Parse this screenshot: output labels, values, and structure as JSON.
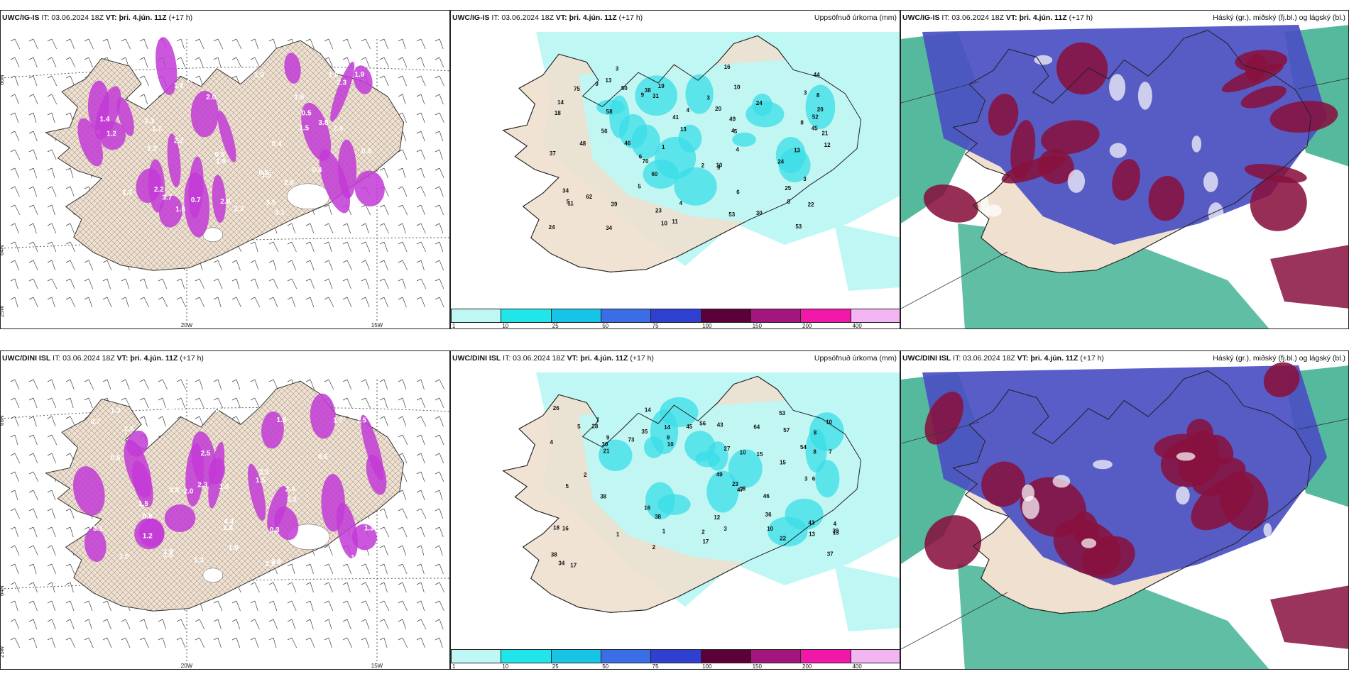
{
  "colors": {
    "land": "#efe0d0",
    "precip_light": "#bff7f4",
    "precip_mid": "#39dde8",
    "snow_pink": "#c23ad6",
    "cloud_high": "#88113f",
    "cloud_mid": "#4a4fc2",
    "cloud_low": "#2aa885"
  },
  "top_row": {
    "wind_panel": {
      "title_model": "UWC/IG-IS",
      "it_prefix": " IT: ",
      "it": "03.06.2024 18Z",
      "vt_prefix": " VT: ",
      "vt": "þri. 4.jún. 11Z",
      "lead": " (+17 h)",
      "axes": {
        "lat_top": "66N",
        "lat_bottom": "64N",
        "lon_left_edge": "25W",
        "lon_mid": "20W",
        "lon_right": "15W"
      },
      "values": [
        "3.1",
        "1.2",
        "2.2",
        "2.3",
        "3.8",
        "3.5",
        "0.9",
        "2.2",
        "1.9",
        "3.7",
        "1.3",
        "1.4",
        "0.9",
        "0.6",
        "1.5",
        "1.8",
        "1.2",
        "2.3",
        "0.4",
        "2.9",
        "2.6",
        "1.5",
        "1.6",
        "2.0",
        "0.4",
        "0.5",
        "1.2",
        "1.7",
        "2.3",
        "2.0",
        "2.6",
        "1.9",
        "1.8",
        "0.7",
        "1.3",
        "2.9",
        "1.0"
      ]
    },
    "precip_panel": {
      "title_model": "UWC/IG-IS",
      "it_prefix": " IT: ",
      "it": "03.06.2024 18Z",
      "vt_prefix": " VT: ",
      "vt": "þri. 4.jún. 11Z",
      "lead": " (+17 h)",
      "label": "Uppsöfnuð úrkoma (mm)",
      "values": [
        "12",
        "3",
        "4",
        "6",
        "5",
        "8",
        "3",
        "1",
        "11",
        "24",
        "62",
        "60",
        "70",
        "53",
        "75",
        "58",
        "45",
        "10",
        "21",
        "49",
        "56",
        "52",
        "38",
        "39",
        "41",
        "31",
        "18",
        "25",
        "34",
        "44",
        "11",
        "24",
        "46",
        "20",
        "30",
        "23",
        "16",
        "19",
        "9",
        "13",
        "14",
        "3",
        "10",
        "37",
        "5",
        "9",
        "4",
        "9",
        "34",
        "50",
        "48",
        "53",
        "13",
        "8",
        "20",
        "24",
        "4",
        "13",
        "10",
        "22",
        "2",
        "6",
        "8",
        "4",
        "3",
        "5"
      ],
      "colorbar": {
        "ticks": [
          "1",
          "10",
          "25",
          "50",
          "75",
          "100",
          "150",
          "200",
          "400"
        ],
        "colors": [
          "#bff7f4",
          "#20e6ea",
          "#16c4e6",
          "#3a6de6",
          "#2f3fcf",
          "#5b0039",
          "#a3167e",
          "#f117a8",
          "#f3b6f2"
        ]
      }
    },
    "cloud_panel": {
      "title_model": "UWC/IG-IS",
      "it_prefix": " IT: ",
      "it": "03.06.2024 18Z",
      "vt_prefix": " VT: ",
      "vt": "þri. 4.jún. 11Z",
      "lead": " (+17 h)",
      "label": "Háský (gr.), miðský (fj.bl.) og lágský (bl.)"
    }
  },
  "bottom_row": {
    "wind_panel": {
      "title_model": "UWC/DINI ISL",
      "it_prefix": " IT: ",
      "it": "03.06.2024 18Z",
      "vt_prefix": " VT: ",
      "vt": "þri. 4.jún. 11Z",
      "lead": " (+17 h)",
      "axes": {
        "lat_top": "66N",
        "lat_bottom": "64N",
        "lon_left_edge": "25W",
        "lon_mid": "20W",
        "lon_right": "15W"
      },
      "values": [
        "1.3",
        "2.2",
        "1.9",
        "1.4",
        "3.3",
        "2.6",
        "3.8",
        "1.1",
        "3.0",
        "2.5",
        "1.7",
        "1.9",
        "2.3",
        "1.8",
        "1.6",
        "1.5",
        "0.6",
        "1.8",
        "2.0",
        "0.7",
        "0.3",
        "0.5",
        "2.9",
        "1.0",
        "0.6",
        "1.5",
        "3.1",
        "0.8",
        "1.3",
        "3.2",
        "1.0",
        "2.8",
        "4.3",
        "1.5",
        "1.2",
        "2.4",
        "1.3"
      ]
    },
    "precip_panel": {
      "title_model": "UWC/DINI ISL",
      "it_prefix": " IT: ",
      "it": "03.06.2024 18Z",
      "vt_prefix": " VT: ",
      "vt": "þri. 4.jún. 11Z",
      "lead": " (+17 h)",
      "label": "Uppsöfnuð úrkoma (mm)",
      "values": [
        "4",
        "1",
        "5",
        "9",
        "21",
        "16",
        "53",
        "49",
        "43",
        "56",
        "46",
        "38",
        "43",
        "26",
        "23",
        "73",
        "64",
        "57",
        "37",
        "30",
        "54",
        "35",
        "36",
        "28",
        "10",
        "10",
        "10",
        "16",
        "17",
        "18",
        "47",
        "10",
        "12",
        "7",
        "15",
        "34",
        "27",
        "15",
        "38",
        "13",
        "4",
        "8",
        "9",
        "3",
        "18",
        "22",
        "13",
        "39",
        "17",
        "45",
        "38",
        "14",
        "14",
        "6",
        "8",
        "5",
        "2",
        "7",
        "3",
        "2",
        "1",
        "2"
      ],
      "colorbar": {
        "ticks": [
          "1",
          "10",
          "25",
          "50",
          "75",
          "100",
          "150",
          "200",
          "400"
        ],
        "colors": [
          "#bff7f4",
          "#20e6ea",
          "#16c4e6",
          "#3a6de6",
          "#2f3fcf",
          "#5b0039",
          "#a3167e",
          "#f117a8",
          "#f3b6f2"
        ]
      }
    },
    "cloud_panel": {
      "title_model": "UWC/DINI ISL",
      "it_prefix": " IT: ",
      "it": "03.06.2024 18Z",
      "vt_prefix": " VT: ",
      "vt": "þri. 4.jún. 11Z",
      "lead": " (+17 h)",
      "label": "Háský (gr.), miðský (fj.bl.) og lágský (bl.)"
    }
  }
}
